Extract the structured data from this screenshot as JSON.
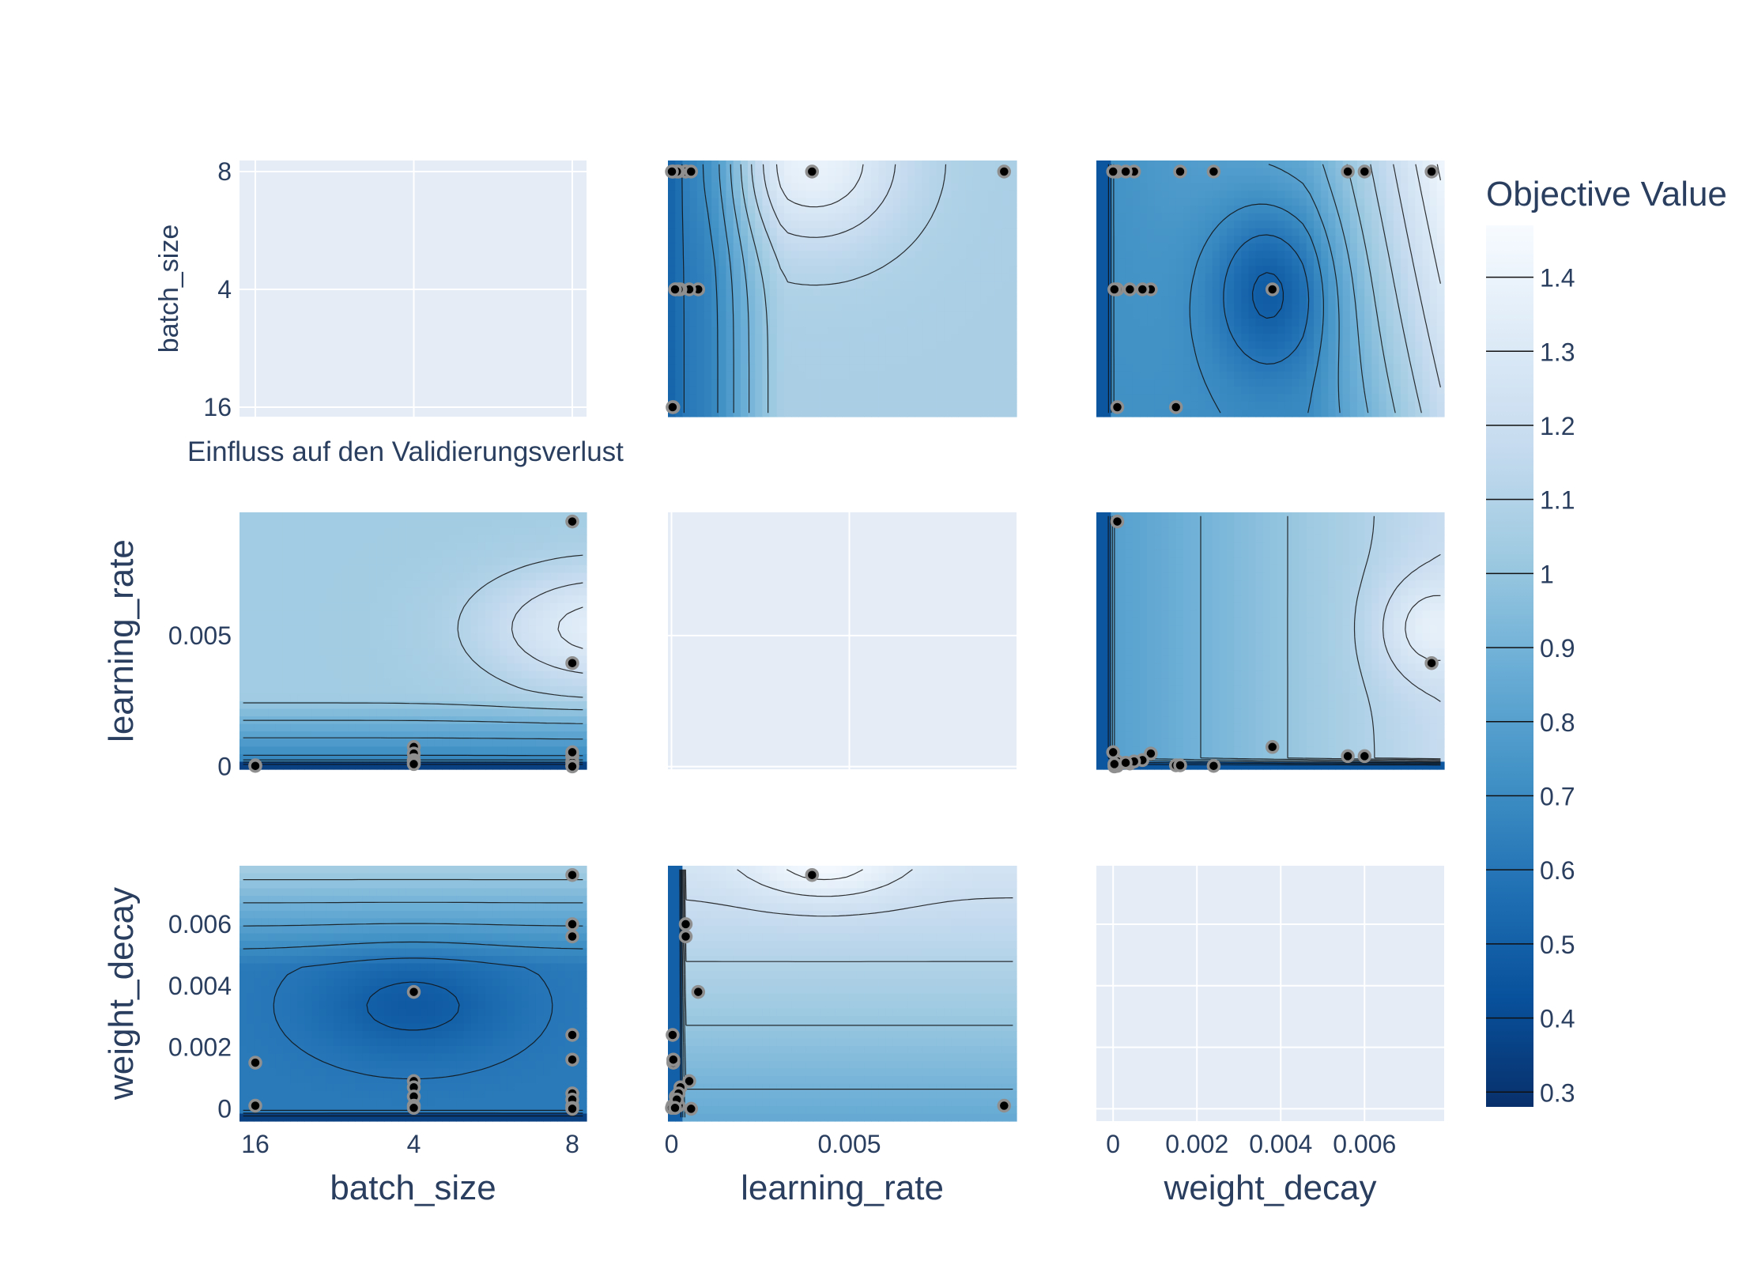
{
  "chart_data": {
    "type": "contour",
    "annotation": "Einfluss auf den Validierungsverlust",
    "params": [
      "batch_size",
      "learning_rate",
      "weight_decay"
    ],
    "axes": {
      "batch_size": {
        "kind": "categorical",
        "categories": [
          "16",
          "4",
          "8"
        ]
      },
      "learning_rate": {
        "kind": "linear",
        "range": [
          -0.0001,
          0.0097
        ],
        "ticks": [
          0,
          0.005
        ],
        "tick_labels": [
          "0",
          "0.005"
        ]
      },
      "weight_decay": {
        "kind": "linear",
        "range": [
          -0.0004,
          0.0079
        ],
        "ticks": [
          0,
          0.002,
          0.004,
          0.006
        ],
        "tick_labels": [
          "0",
          "0.002",
          "0.004",
          "0.006"
        ]
      }
    },
    "colorbar": {
      "title": "Objective Value",
      "range": [
        0.28,
        1.47
      ],
      "ticks": [
        0.3,
        0.4,
        0.5,
        0.6,
        0.7,
        0.8,
        0.9,
        1,
        1.1,
        1.2,
        1.3,
        1.4
      ],
      "tick_labels": [
        "0.3",
        "0.4",
        "0.5",
        "0.6",
        "0.7",
        "0.8",
        "0.9",
        "1",
        "1.1",
        "1.2",
        "1.3",
        "1.4"
      ],
      "colorscale": [
        "#08306b",
        "#08519c",
        "#2171b5",
        "#4292c6",
        "#6baed6",
        "#9ecae1",
        "#c6dbef",
        "#deebf7",
        "#f7fbff"
      ]
    },
    "trials": [
      {
        "batch_size": "8",
        "learning_rate": 0.00935,
        "weight_decay": 0.0001
      },
      {
        "batch_size": "8",
        "learning_rate": 0.00395,
        "weight_decay": 0.0076
      },
      {
        "batch_size": "4",
        "learning_rate": 0.00075,
        "weight_decay": 0.0038
      },
      {
        "batch_size": "16",
        "learning_rate": 5e-05,
        "weight_decay": 0.0015
      },
      {
        "batch_size": "16",
        "learning_rate": 3e-05,
        "weight_decay": 0.0001
      },
      {
        "batch_size": "8",
        "learning_rate": 0.0004,
        "weight_decay": 0.006
      },
      {
        "batch_size": "8",
        "learning_rate": 0.0004,
        "weight_decay": 0.0056
      },
      {
        "batch_size": "8",
        "learning_rate": 3e-05,
        "weight_decay": 0.0024
      },
      {
        "batch_size": "8",
        "learning_rate": 5e-05,
        "weight_decay": 0.0016
      },
      {
        "batch_size": "4",
        "learning_rate": 0.0005,
        "weight_decay": 0.0009
      },
      {
        "batch_size": "4",
        "learning_rate": 0.00025,
        "weight_decay": 0.0007
      },
      {
        "batch_size": "4",
        "learning_rate": 0.00012,
        "weight_decay": 0.0004
      },
      {
        "batch_size": "4",
        "learning_rate": 0.0002,
        "weight_decay": 0.0001
      },
      {
        "batch_size": "8",
        "learning_rate": 0.0002,
        "weight_decay": 0.0005
      },
      {
        "batch_size": "8",
        "learning_rate": 0.00015,
        "weight_decay": 0.0003
      },
      {
        "batch_size": "8",
        "learning_rate": 1e-05,
        "weight_decay": 3e-05
      },
      {
        "batch_size": "4",
        "learning_rate": 0.0001,
        "weight_decay": 3e-05
      },
      {
        "batch_size": "8",
        "learning_rate": 0.00055,
        "weight_decay": 0.0
      }
    ]
  }
}
